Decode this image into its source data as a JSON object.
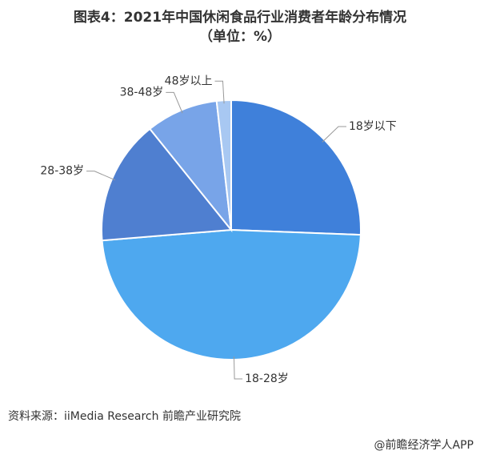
{
  "chart_data": {
    "type": "pie",
    "title": "图表4：2021年中国休闲食品行业消费者年龄分布情况",
    "subtitle": "（单位：%）",
    "categories": [
      "18岁以下",
      "18-28岁",
      "28-38岁",
      "38-48岁",
      "48岁以上"
    ],
    "values": [
      25.6,
      48.1,
      15.5,
      9.0,
      1.8
    ],
    "colors": [
      "#3f80da",
      "#4ea8ef",
      "#4f7fd0",
      "#78a4e8",
      "#a8c8f2"
    ],
    "source": "资料来源：iiMedia Research 前瞻产业研究院",
    "footer": "@前瞻经济学人APP"
  }
}
